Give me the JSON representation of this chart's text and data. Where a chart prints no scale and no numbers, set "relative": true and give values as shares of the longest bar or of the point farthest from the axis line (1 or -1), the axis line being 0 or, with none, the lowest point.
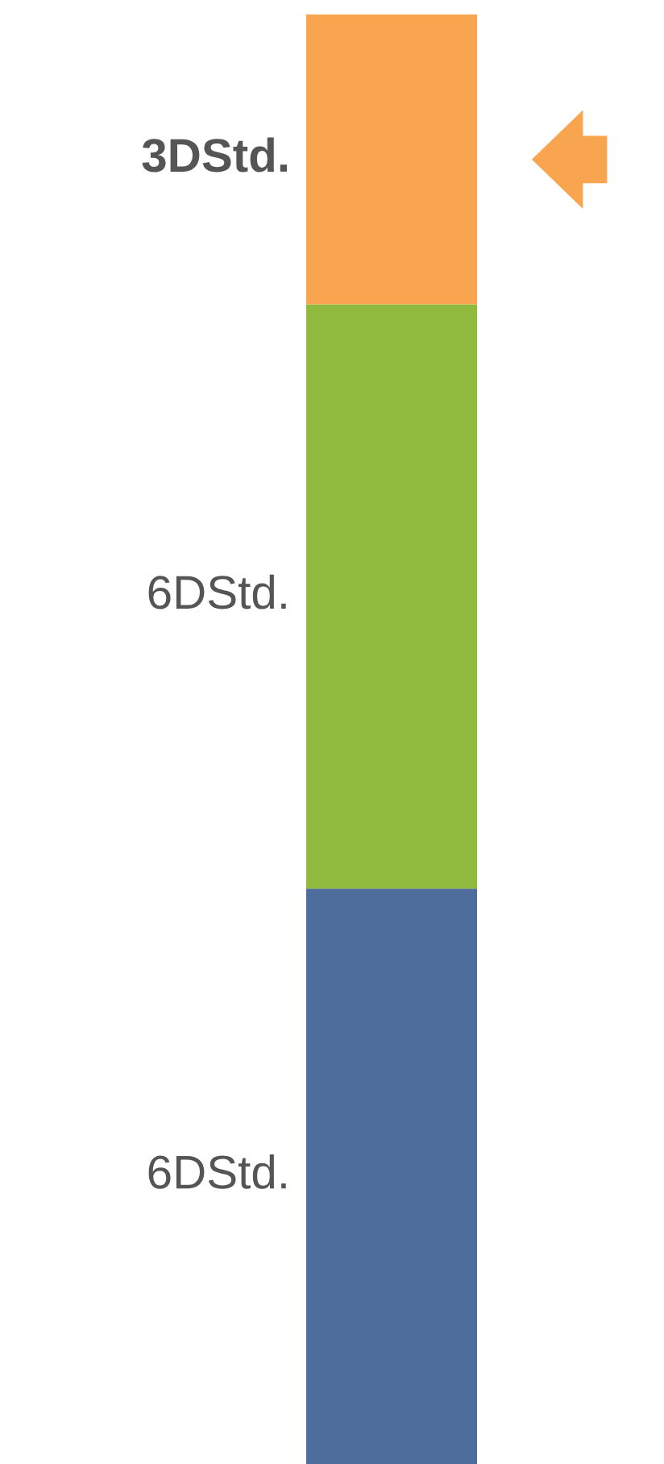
{
  "chart_data": {
    "type": "bar",
    "stacked": true,
    "relative": true,
    "categories": [
      null
    ],
    "series": [
      {
        "name": "6DStd.",
        "color": "#4e6c9c",
        "values": [
          0.397
        ]
      },
      {
        "name": "6DStd.",
        "color": "#8fba3e",
        "values": [
          0.403
        ]
      },
      {
        "name": "3DStd.",
        "color": "#f9a44e",
        "values": [
          0.2
        ]
      }
    ],
    "legend": false,
    "grid": false
  }
}
